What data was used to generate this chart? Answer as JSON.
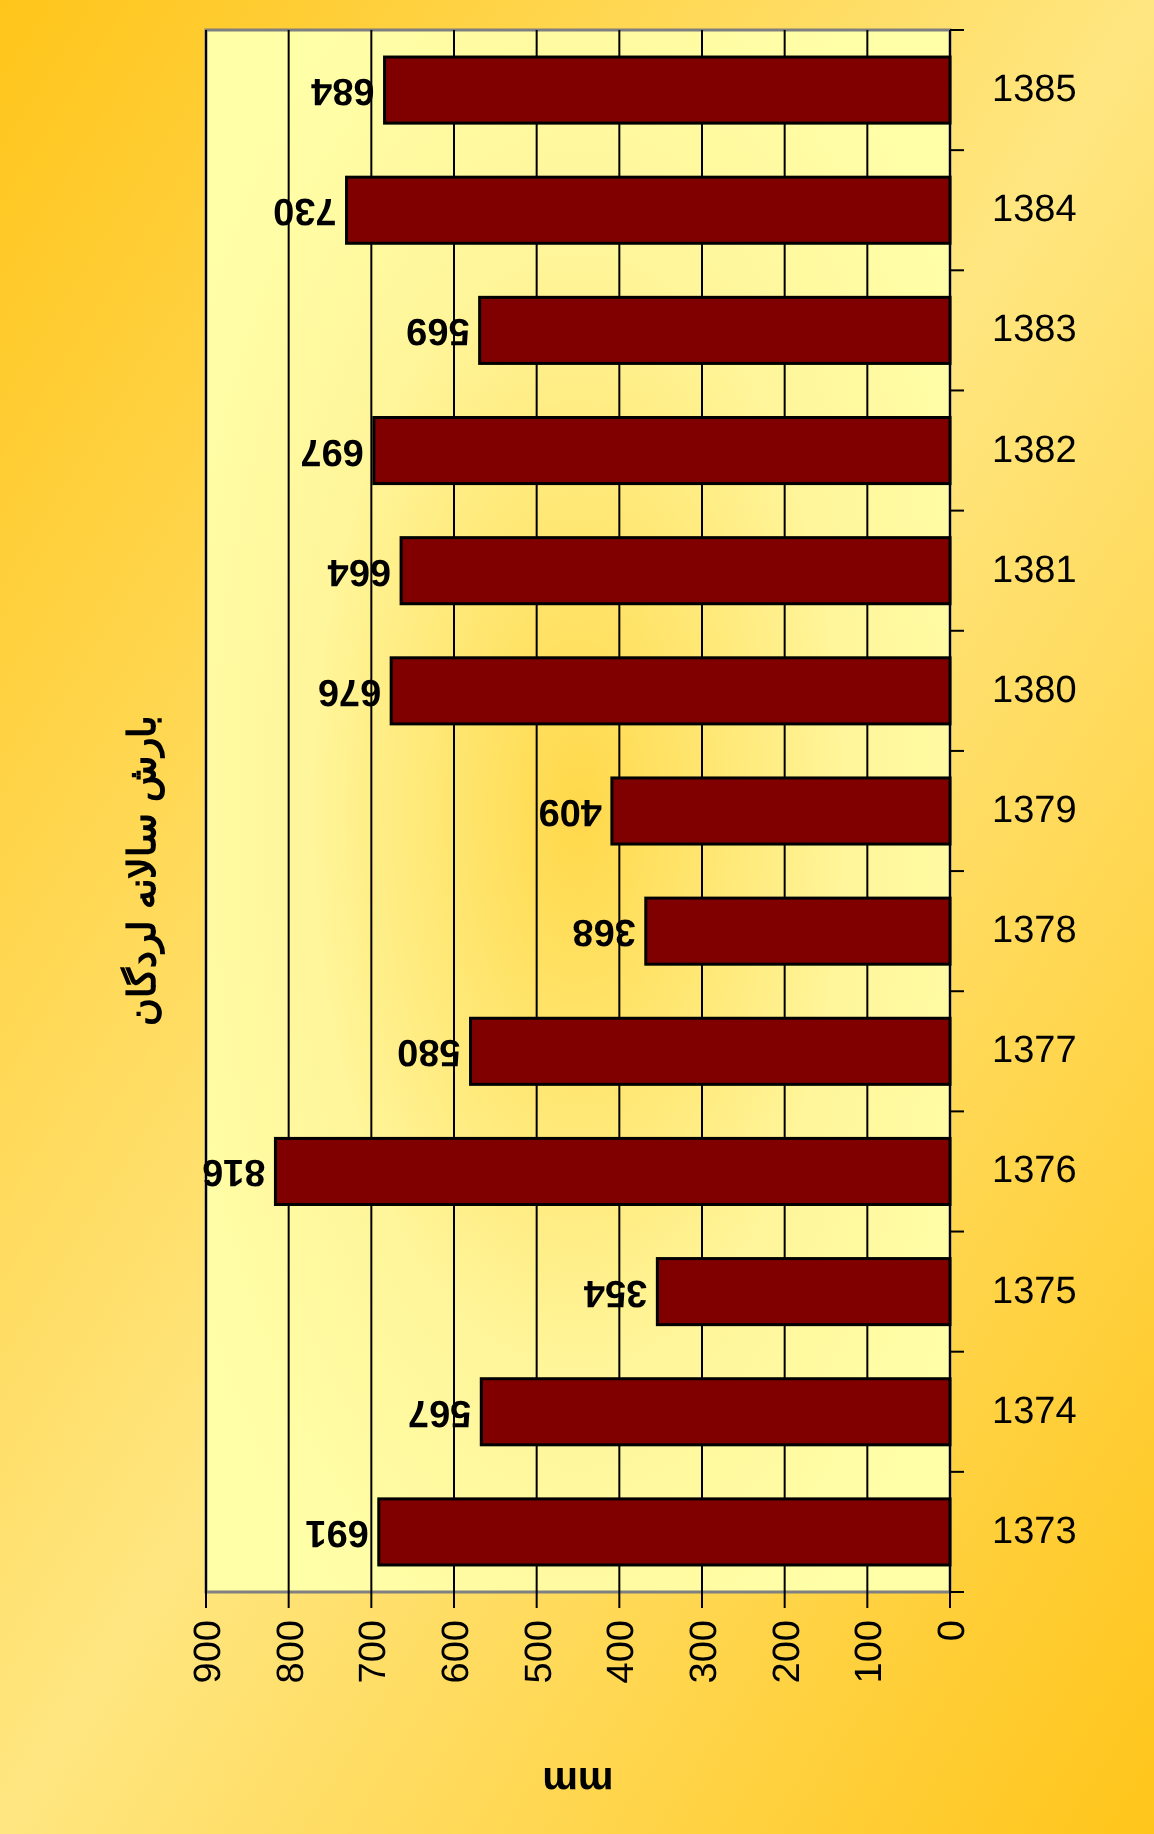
{
  "chart_data": {
    "type": "bar",
    "orientation": "horizontal",
    "title": "بارش سالانه لردگان",
    "xlabel": "mm",
    "categories": [
      "1385",
      "1384",
      "1383",
      "1382",
      "1381",
      "1380",
      "1379",
      "1378",
      "1377",
      "1376",
      "1375",
      "1374",
      "1373"
    ],
    "values": [
      684,
      730,
      569,
      697,
      664,
      676,
      409,
      368,
      580,
      816,
      354,
      567,
      691
    ],
    "color": "#800000",
    "xlim": [
      900,
      0
    ],
    "xticks": [
      900,
      800,
      700,
      600,
      500,
      400,
      300,
      200,
      100,
      0
    ],
    "grid": "x",
    "data_labels": true
  }
}
